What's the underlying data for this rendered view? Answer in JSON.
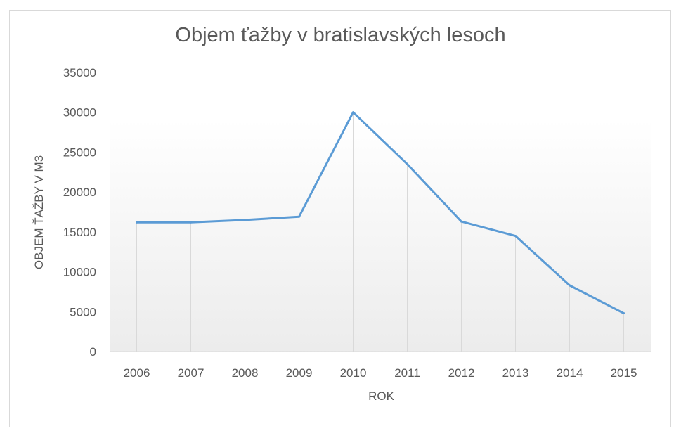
{
  "chart_data": {
    "type": "line",
    "title": "Objem ťažby v bratislavských lesoch",
    "xlabel": "ROK",
    "ylabel": "OBJEM ŤAŽBY V M3",
    "categories": [
      "2006",
      "2007",
      "2008",
      "2009",
      "2010",
      "2011",
      "2012",
      "2013",
      "2014",
      "2015"
    ],
    "series": [
      {
        "name": "",
        "values": [
          16200,
          16200,
          16500,
          16900,
          30000,
          23500,
          16300,
          14500,
          8300,
          4800
        ]
      }
    ],
    "ylim": [
      0,
      35000
    ],
    "yticks": [
      "0",
      "5000",
      "10000",
      "15000",
      "20000",
      "25000",
      "30000",
      "35000"
    ],
    "grid": "vertical",
    "line_color": "#5b9bd5",
    "grid_color": "#d9d9d9",
    "text_color": "#595959"
  }
}
